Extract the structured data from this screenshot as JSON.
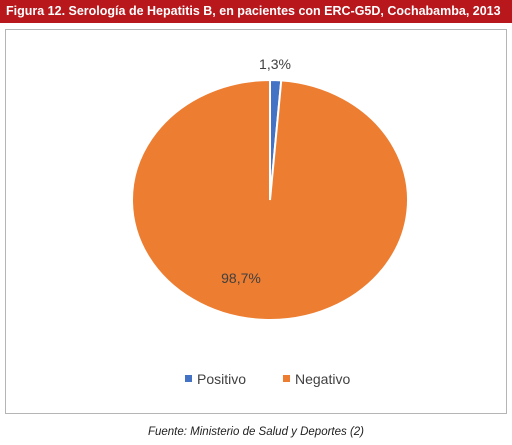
{
  "figure": {
    "title": "Figura 12. Serología de Hepatitis B, en pacientes con ERC-G5D, Cochabamba, 2013",
    "source": "Fuente: Ministerio de Salud y Deportes (2)"
  },
  "chart_data": {
    "type": "pie",
    "title": "",
    "categories": [
      "Positivo",
      "Negativo"
    ],
    "values": [
      1.3,
      98.7
    ],
    "data_labels": [
      "1,3%",
      "98,7%"
    ],
    "colors": [
      "#4472c4",
      "#ed7d31"
    ],
    "legend": {
      "placement": "bottom",
      "entries": [
        "Positivo",
        "Negativo"
      ]
    }
  }
}
